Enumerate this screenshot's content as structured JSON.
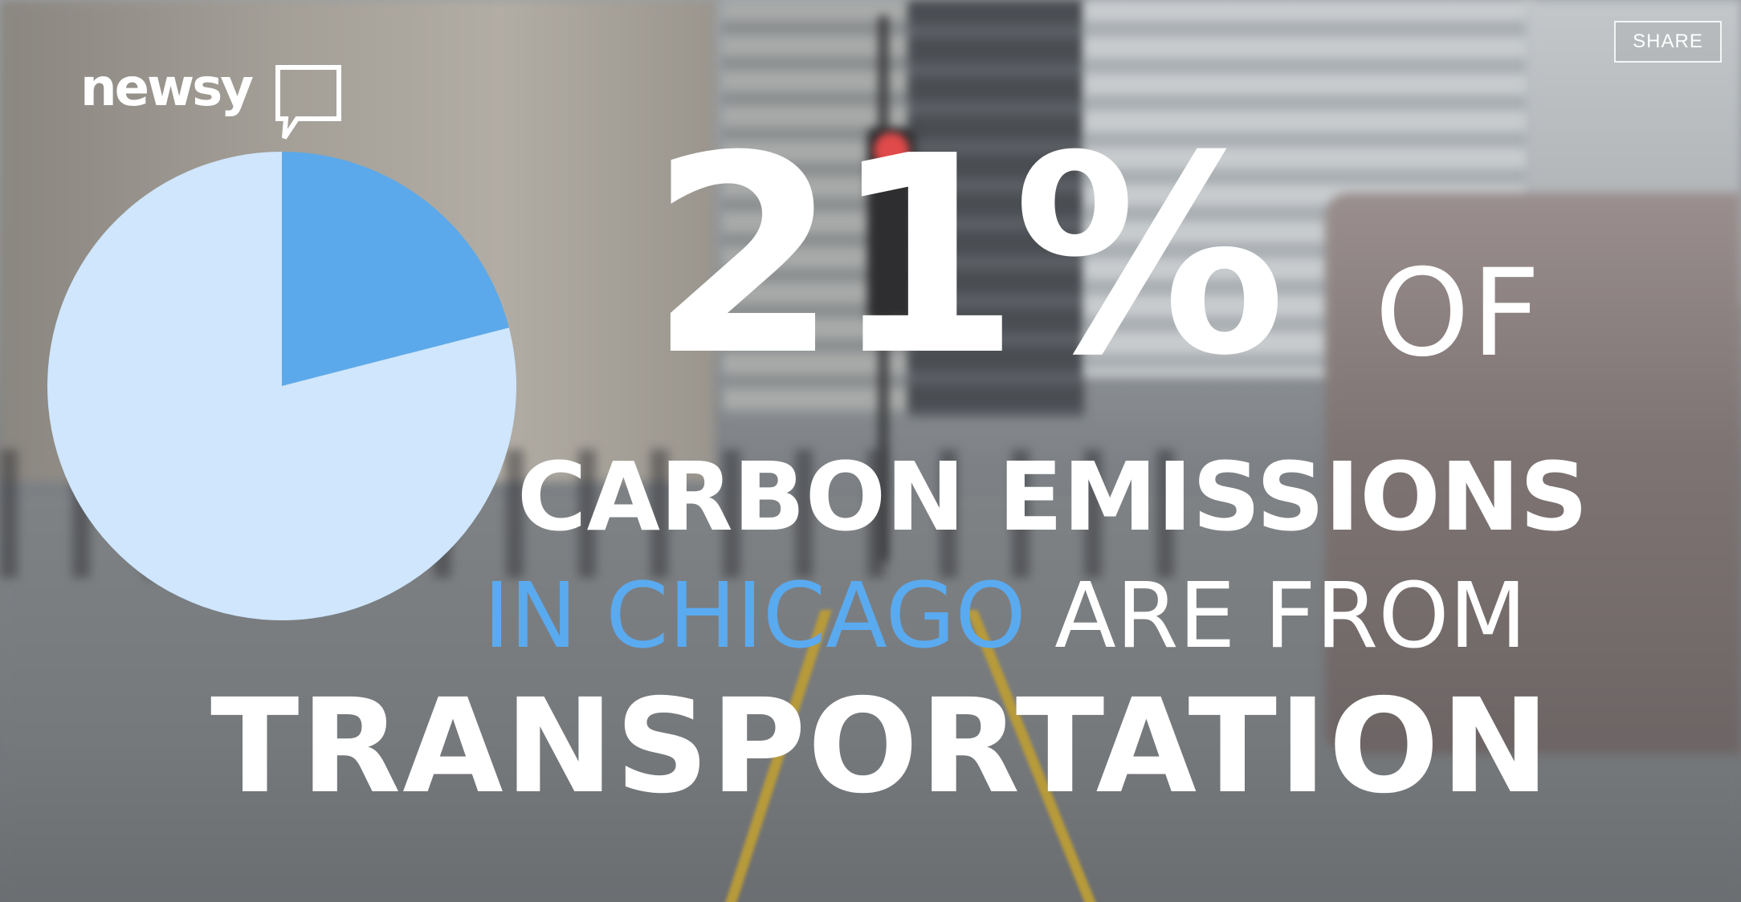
{
  "logo": {
    "text": "newsy",
    "icon": "speech-bubble-icon"
  },
  "share_button": {
    "label": "SHARE"
  },
  "headline": {
    "percent": "21%",
    "of": "OF",
    "line2": "CARBON EMISSIONS",
    "line3_highlight": "IN CHICAGO",
    "line3_rest": "ARE FROM",
    "line4": "TRANSPORTATION"
  },
  "colors": {
    "accent_blue": "#5aaaf0",
    "pie_highlight": "#5ba9ea",
    "pie_rest": "#cfe6fd",
    "text": "#ffffff"
  },
  "chart_data": {
    "type": "pie",
    "slices": [
      {
        "value": 21,
        "color": "#5ba9ea"
      },
      {
        "value": 79,
        "color": "#cfe6fd"
      }
    ]
  }
}
